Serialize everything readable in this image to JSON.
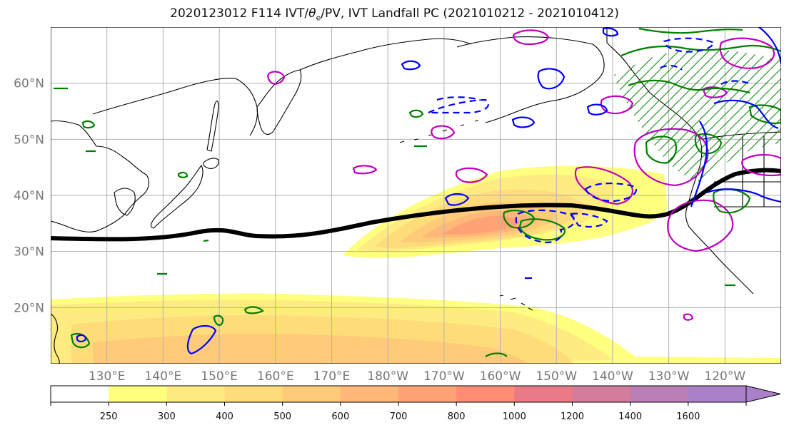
{
  "title": {
    "prefix": "2020123012 F114 IVT/",
    "theta_symbol": "θ",
    "theta_subscript": "e",
    "suffix": "/PV, IVT Landfall PC (2021010212 - 2021010412)"
  },
  "map": {
    "projection": "equirectangular",
    "lon_range_east": [
      120,
      250
    ],
    "lat_range": [
      10,
      70
    ],
    "gridlines": true,
    "lat_ticks": [
      {
        "value": 20,
        "label": "20°N"
      },
      {
        "value": 30,
        "label": "30°N"
      },
      {
        "value": 40,
        "label": "40°N"
      },
      {
        "value": 50,
        "label": "50°N"
      },
      {
        "value": 60,
        "label": "60°N"
      }
    ],
    "lon_ticks": [
      {
        "value": 130,
        "label": "130°E"
      },
      {
        "value": 140,
        "label": "140°E"
      },
      {
        "value": 150,
        "label": "150°E"
      },
      {
        "value": 160,
        "label": "160°E"
      },
      {
        "value": 170,
        "label": "170°E"
      },
      {
        "value": 180,
        "label": "180°W"
      },
      {
        "value": 190,
        "label": "170°W"
      },
      {
        "value": 200,
        "label": "160°W"
      },
      {
        "value": 210,
        "label": "150°W"
      },
      {
        "value": 220,
        "label": "140°W"
      },
      {
        "value": 230,
        "label": "130°W"
      },
      {
        "value": 240,
        "label": "120°W"
      }
    ],
    "colors": {
      "coastline": "#000000",
      "grid": "#b0b0b0",
      "axis_label": "#777777",
      "jet_line": "#000000",
      "green_contour": "#008000",
      "blue_contour": "#0000ff",
      "magenta_contour": "#c000c0"
    }
  },
  "colorbar": {
    "boundaries": [
      0,
      250,
      300,
      400,
      500,
      600,
      700,
      800,
      1000,
      1200,
      1400,
      1600,
      1800
    ],
    "tick_labels": [
      "250",
      "300",
      "400",
      "500",
      "600",
      "700",
      "800",
      "1000",
      "1200",
      "1400",
      "1600"
    ],
    "colors": [
      "#ffffff",
      "#ffff80",
      "#ffec80",
      "#ffdc7a",
      "#ffcb78",
      "#ffb878",
      "#ffa275",
      "#ff8c75",
      "#eb7a86",
      "#d47c9c",
      "#bb7fb7",
      "#aa80c8"
    ],
    "extend": "max"
  }
}
